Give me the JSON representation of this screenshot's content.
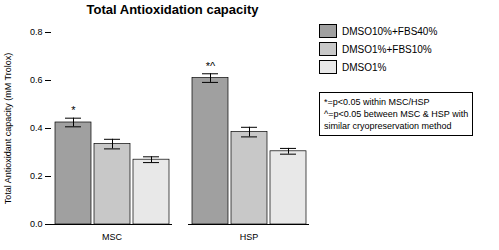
{
  "chart_data": {
    "type": "bar",
    "title": "Total Antioxidation capacity",
    "ylabel": "Total Antioxidant capacity (mM Trolox)",
    "categories": [
      "MSC",
      "HSP"
    ],
    "series": [
      {
        "name": "DMSO10%+FBS40%",
        "color": "#a0a0a0",
        "values": [
          0.425,
          0.61
        ],
        "errors": [
          0.018,
          0.018
        ]
      },
      {
        "name": "DMSO1%+FBS10%",
        "color": "#c8c8c8",
        "values": [
          0.335,
          0.385
        ],
        "errors": [
          0.02,
          0.02
        ]
      },
      {
        "name": "DMSO1%",
        "color": "#e8e8e8",
        "values": [
          0.27,
          0.305
        ],
        "errors": [
          0.012,
          0.012
        ]
      }
    ],
    "ylim": [
      0.0,
      0.8
    ],
    "yticks": [
      {
        "value": 0.0,
        "label": "0.0"
      },
      0.2,
      0.4,
      0.6,
      0.8
    ],
    "grid": false,
    "legend": "right",
    "annotations": [
      {
        "text": "*",
        "category": "MSC",
        "series": "DMSO10%+FBS40%"
      },
      {
        "text": "*^",
        "category": "HSP",
        "series": "DMSO10%+FBS40%"
      }
    ],
    "note": [
      "*=p<0.05 within MSC/HSP",
      "^=p<0.05 between MSC & HSP with",
      "similar cryopreservation method"
    ]
  }
}
